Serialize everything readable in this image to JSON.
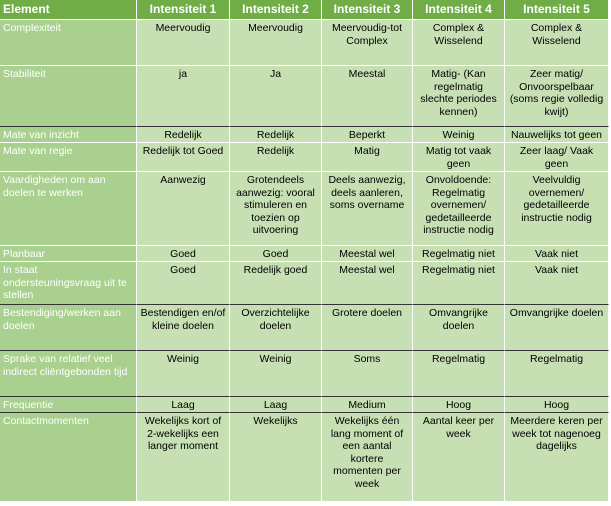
{
  "table": {
    "columns": [
      "Element",
      "Intensiteit 1",
      "Intensiteit 2",
      "Intensiteit 3",
      "Intensiteit 4",
      "Intensiteit 5"
    ],
    "rows": [
      {
        "label": "Complexiteit",
        "cells": [
          "Meervoudig",
          "Meervoudig",
          "Meervoudig-tot Complex",
          "Complex & Wisselend",
          "Complex & Wisselend"
        ]
      },
      {
        "label": "Stabiliteit",
        "cells": [
          "ja",
          "Ja",
          "Meestal",
          "Matig- (Kan regelmatig slechte periodes kennen)",
          "Zeer matig/ Onvoorspelbaar (soms regie volledig kwijt)"
        ]
      },
      {
        "label": "Mate van inzicht",
        "cells": [
          "Redelijk",
          "Redelijk",
          "Beperkt",
          "Weinig",
          "Nauwelijks tot geen"
        ]
      },
      {
        "label": "Mate van regie",
        "cells": [
          "Redelijk tot Goed",
          "Redelijk",
          "Matig",
          "Matig tot vaak geen",
          "Zeer laag/ Vaak geen"
        ]
      },
      {
        "label": "Vaardigheden om aan doelen te werken",
        "cells": [
          "Aanwezig",
          "Grotendeels aanwezig: vooral stimuleren en toezien op uitvoering",
          "Deels aanwezig, deels aanleren, soms overname",
          "Onvoldoende: Regelmatig overnemen/ gedetailleerde instructie nodig",
          "Veelvuldig overnemen/ gedetailleerde instructie nodig"
        ]
      },
      {
        "label": "Planbaar",
        "cells": [
          "Goed",
          "Goed",
          "Meestal wel",
          "Regelmatig niet",
          "Vaak niet"
        ]
      },
      {
        "label": "In staat ondersteuningsvraag uit te stellen",
        "cells": [
          "Goed",
          "Redelijk goed",
          "Meestal wel",
          "Regelmatig niet",
          "Vaak niet"
        ]
      },
      {
        "label": "Bestendiging/werken aan doelen",
        "cells": [
          "Bestendigen en/of kleine doelen",
          "Overzichtelijke doelen",
          "Grotere doelen",
          "Omvangrijke doelen",
          "Omvangrijke doelen"
        ]
      },
      {
        "label": "Sprake van relatief veel indirect cliëntgebonden tijd",
        "cells": [
          "Weinig",
          "Weinig",
          "Soms",
          "Regelmatig",
          "Regelmatig"
        ]
      },
      {
        "label": "Frequentie",
        "cells": [
          "Laag",
          "Laag",
          "Medium",
          "Hoog",
          "Hoog"
        ]
      },
      {
        "label": "Contactmomenten",
        "cells": [
          "Wekelijks kort of 2-wekelijks een langer moment",
          "Wekelijks",
          "Wekelijks één lang moment of een aantal kortere momenten per week",
          "Aantal keer per week",
          "Meerdere keren per week tot nagenoeg dagelijks"
        ]
      }
    ]
  }
}
